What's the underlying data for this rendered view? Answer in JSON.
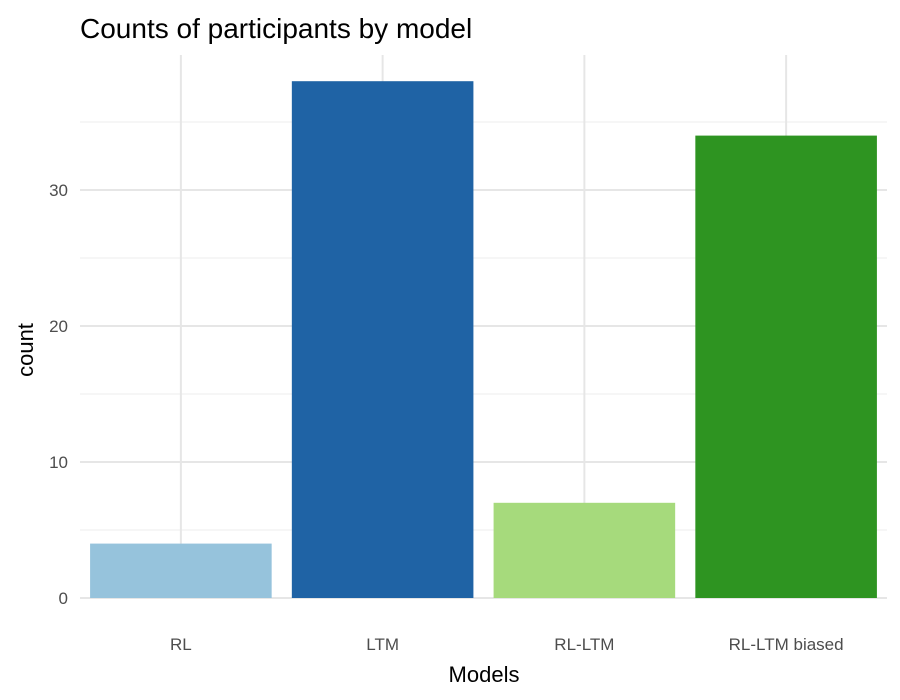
{
  "chart_data": {
    "type": "bar",
    "title": "Counts of participants by model",
    "xlabel": "Models",
    "ylabel": "count",
    "categories": [
      "RL",
      "LTM",
      "RL-LTM",
      "RL-LTM biased"
    ],
    "values": [
      4,
      38,
      7,
      34
    ],
    "colors": [
      "#96c3dc",
      "#1f63a5",
      "#a6da7c",
      "#2e9421"
    ],
    "ylim": [
      0,
      40
    ],
    "yticks": [
      0,
      10,
      20,
      30
    ],
    "grid": true,
    "legend": "none"
  }
}
